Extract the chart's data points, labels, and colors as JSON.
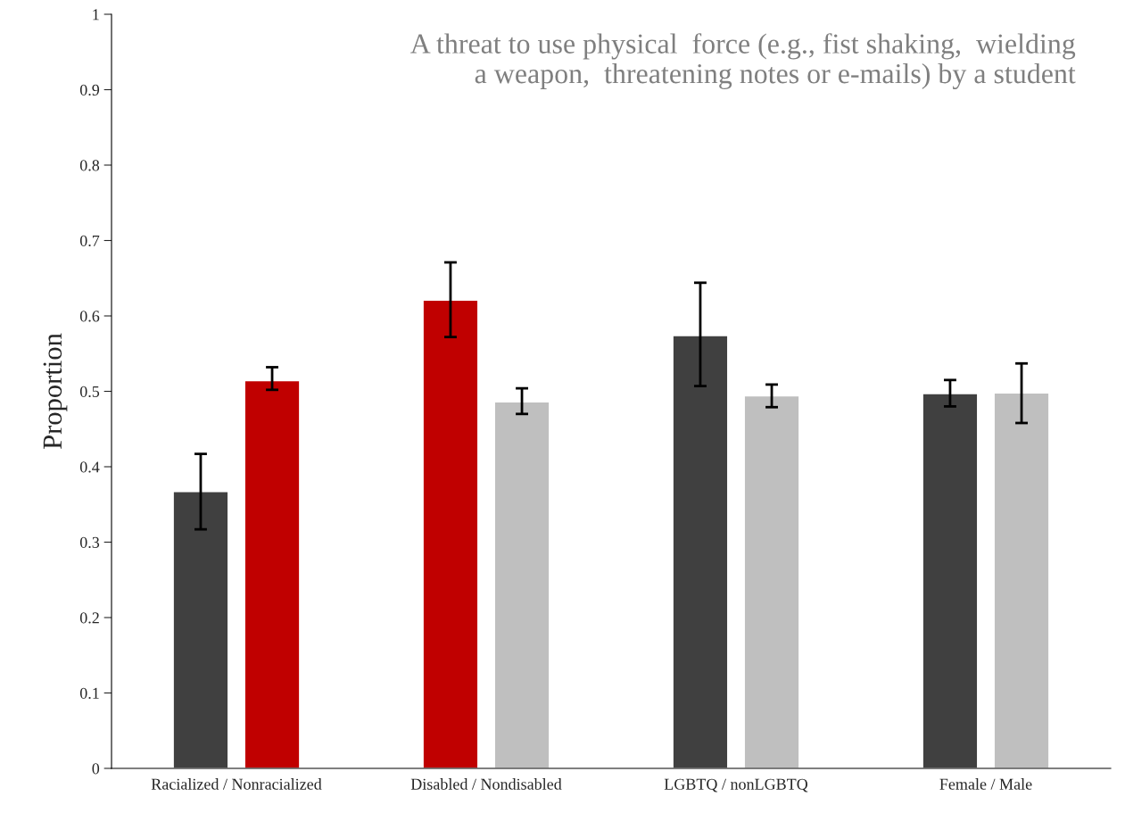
{
  "chart_data": {
    "type": "bar",
    "title": "A threat to use physical  force (e.g., fist shaking,  wielding\na weapon,  threatening notes or e-mails) by a student",
    "ylabel": "Proportion",
    "categories": [
      "Racialized / Nonracialized",
      "Disabled / Nondisabled",
      "LGBTQ / nonLGBTQ",
      "Female / Male"
    ],
    "series": [
      {
        "colors": [
          "#404040",
          "#c00000",
          "#404040",
          "#404040"
        ],
        "values": [
          0.367,
          0.621,
          0.574,
          0.497
        ],
        "errors": [
          [
            0.317,
            0.417
          ],
          [
            0.572,
            0.671
          ],
          [
            0.507,
            0.644
          ],
          [
            0.48,
            0.515
          ]
        ]
      },
      {
        "colors": [
          "#c00000",
          "#bfbfbf",
          "#bfbfbf",
          "#bfbfbf"
        ],
        "values": [
          0.514,
          0.486,
          0.494,
          0.498
        ],
        "errors": [
          [
            0.502,
            0.532
          ],
          [
            0.47,
            0.504
          ],
          [
            0.479,
            0.509
          ],
          [
            0.458,
            0.537
          ]
        ]
      }
    ],
    "ylim": [
      0,
      1
    ],
    "yticks": [
      0,
      0.1,
      0.2,
      0.3,
      0.4,
      0.5,
      0.6,
      0.7,
      0.8,
      0.9,
      1
    ],
    "grid": false,
    "legend": false
  }
}
